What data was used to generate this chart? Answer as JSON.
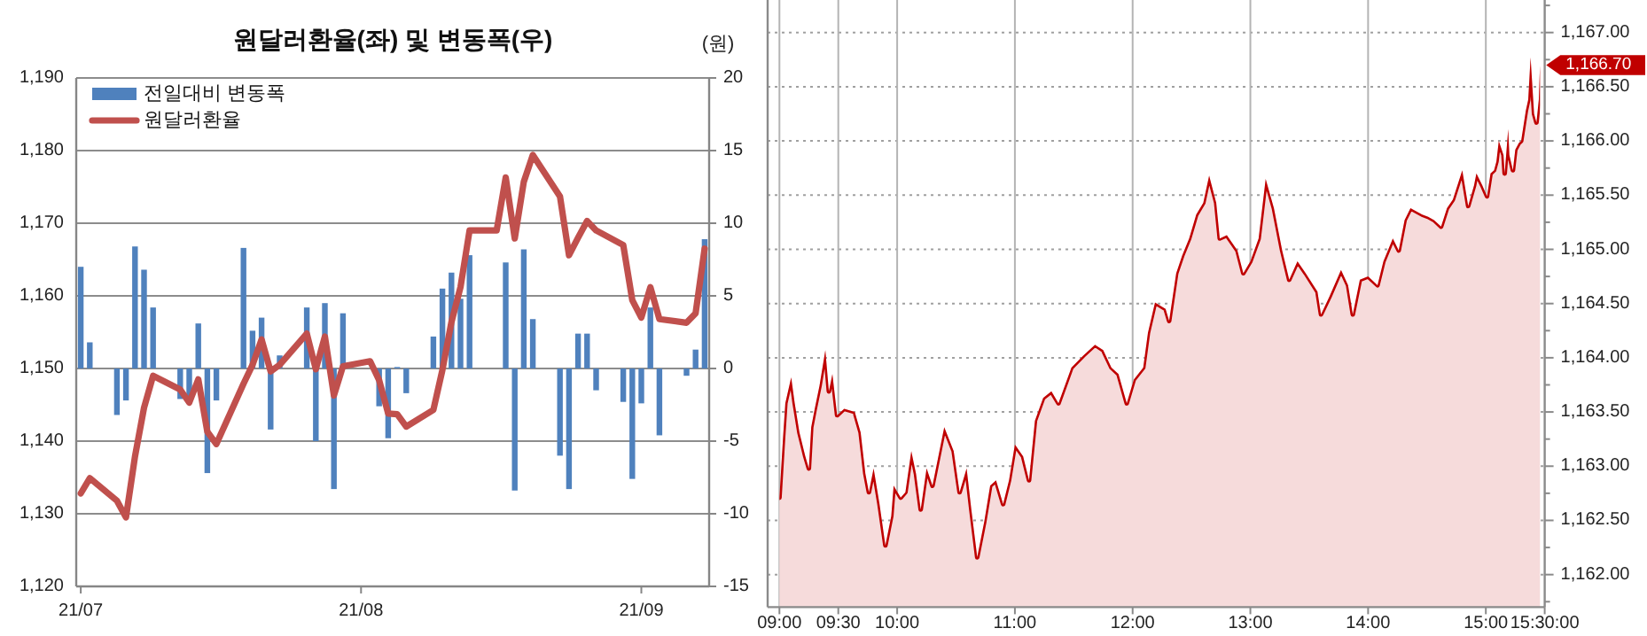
{
  "chart_data": [
    {
      "type": "bar",
      "title": "원달러환율(좌) 및 변동폭(우)",
      "y2label": "(원)",
      "legend": "top left",
      "grid": "y",
      "x": [
        "--07-01",
        "--07-02",
        "--07-05",
        "--07-06",
        "--07-07",
        "--07-08",
        "--07-09",
        "--07-12",
        "--07-13",
        "--07-14",
        "--07-15",
        "--07-16",
        "--07-19",
        "--07-20",
        "--07-21",
        "--07-22",
        "--07-23",
        "--07-26",
        "--07-27",
        "--07-28",
        "--07-29",
        "--07-30",
        "--08-02",
        "--08-03",
        "--08-04",
        "--08-05",
        "--08-06",
        "--08-09",
        "--08-10",
        "--08-11",
        "--08-12",
        "--08-13",
        "--08-16",
        "--08-17",
        "--08-18",
        "--08-19",
        "--08-20",
        "--08-23",
        "--08-24",
        "--08-25",
        "--08-26",
        "--08-27",
        "--08-30",
        "--08-31",
        "--09-01",
        "--09-02",
        "--09-03",
        "--09-06",
        "--09-07",
        "--09-08"
      ],
      "xlim": [
        "--06-30T12:00",
        "--09-08T12:00"
      ],
      "xticks": [
        {
          "value": "--07-01",
          "label": "21/07"
        },
        {
          "value": "--08-01",
          "label": "21/08"
        },
        {
          "value": "--09-01",
          "label": "21/09"
        }
      ],
      "ylim": [
        1120,
        1190
      ],
      "yticks": [
        {
          "value": 1120,
          "label": "1,120"
        },
        {
          "value": 1130,
          "label": "1,130"
        },
        {
          "value": 1140,
          "label": "1,140"
        },
        {
          "value": 1150,
          "label": "1,150"
        },
        {
          "value": 1160,
          "label": "1,160"
        },
        {
          "value": 1170,
          "label": "1,170"
        },
        {
          "value": 1180,
          "label": "1,180"
        },
        {
          "value": 1190,
          "label": "1,190"
        }
      ],
      "y2lim": [
        -15,
        20
      ],
      "y2ticks": [
        -15,
        -10,
        -5,
        0,
        5,
        10,
        15,
        20
      ],
      "series": [
        {
          "name": "전일대비 변동폭",
          "axis": "y2",
          "color": "#4f81bd",
          "values": [
            7.0,
            1.8,
            -3.2,
            -2.2,
            8.4,
            6.8,
            4.2,
            -2.1,
            -1.9,
            3.1,
            -7.2,
            -2.2,
            8.3,
            2.6,
            3.5,
            -4.2,
            0.9,
            4.2,
            -5.0,
            4.5,
            -8.3,
            3.8,
            null,
            -2.6,
            -4.8,
            0.1,
            -1.7,
            2.2,
            5.5,
            6.6,
            4.8,
            7.8,
            null,
            7.3,
            -8.4,
            8.2,
            3.4,
            -6.0,
            -8.3,
            2.4,
            2.4,
            -1.5,
            -2.3,
            -7.6,
            -2.4,
            4.2,
            -4.6,
            -0.5,
            1.3,
            8.9
          ]
        },
        {
          "name": "원달러환율",
          "type": "line",
          "color": "#c0504d",
          "values": [
            1132.8,
            1134.9,
            1131.8,
            1129.5,
            1137.9,
            1144.6,
            1149.0,
            1147.1,
            1145.3,
            1148.5,
            1141.3,
            1139.6,
            1147.9,
            1150.5,
            1154.0,
            1149.6,
            1150.5,
            1154.8,
            1149.9,
            1154.4,
            1146.3,
            1150.3,
            1151.0,
            1148.4,
            1143.8,
            1143.7,
            1142.0,
            1144.3,
            1149.8,
            1156.4,
            1161.2,
            1169.0,
            1169.0,
            1176.3,
            1167.9,
            1175.7,
            1179.4,
            1173.7,
            1165.6,
            1168.0,
            1170.3,
            1169.0,
            1167.0,
            1159.4,
            1157.0,
            1161.2,
            1156.8,
            1156.3,
            1157.6,
            1166.5
          ]
        }
      ]
    },
    {
      "type": "area",
      "color": "#c00000",
      "grid": true,
      "x": [
        9.0,
        9.03,
        9.05,
        9.1,
        9.13,
        9.17,
        9.22,
        9.25,
        9.27,
        9.3,
        9.34,
        9.39,
        9.42,
        9.45,
        9.49,
        9.55,
        9.64,
        9.69,
        9.73,
        9.76,
        9.8,
        9.85,
        9.9,
        9.95,
        9.97,
        10.03,
        10.07,
        10.12,
        10.16,
        10.2,
        10.25,
        10.3,
        10.35,
        10.4,
        10.48,
        10.53,
        10.59,
        10.63,
        10.68,
        10.74,
        10.79,
        10.84,
        10.9,
        10.95,
        11.0,
        11.07,
        11.12,
        11.17,
        11.24,
        11.31,
        11.37,
        11.48,
        11.58,
        11.68,
        11.75,
        11.82,
        11.88,
        11.95,
        12.01,
        12.09,
        12.13,
        12.19,
        12.28,
        12.31,
        12.37,
        12.42,
        12.48,
        12.54,
        12.6,
        12.65,
        12.71,
        12.74,
        12.8,
        12.89,
        12.94,
        13.0,
        13.07,
        13.13,
        13.2,
        13.27,
        13.33,
        13.4,
        13.47,
        13.57,
        13.6,
        13.67,
        13.77,
        13.83,
        13.87,
        13.93,
        14.0,
        14.08,
        14.13,
        14.21,
        14.26,
        14.31,
        14.36,
        14.46,
        14.51,
        14.56,
        14.62,
        14.67,
        14.72,
        14.8,
        14.85,
        14.9,
        14.92,
        14.97,
        15.01,
        15.04,
        15.07,
        15.09,
        15.11,
        15.15,
        15.16,
        15.19,
        15.2,
        15.23,
        15.25,
        15.28,
        15.3,
        15.34,
        15.36,
        15.38,
        15.41,
        15.43,
        15.45,
        15.46
      ],
      "values": [
        1162.71,
        1163.25,
        1163.58,
        1163.82,
        1163.58,
        1163.31,
        1163.09,
        1162.98,
        1163.36,
        1163.53,
        1163.74,
        1164.07,
        1163.69,
        1163.85,
        1163.47,
        1163.53,
        1163.5,
        1163.31,
        1162.93,
        1162.76,
        1162.98,
        1162.65,
        1162.27,
        1162.54,
        1162.82,
        1162.71,
        1162.76,
        1163.14,
        1162.93,
        1162.6,
        1162.98,
        1162.82,
        1163.09,
        1163.36,
        1163.14,
        1162.76,
        1162.98,
        1162.6,
        1162.16,
        1162.49,
        1162.82,
        1162.87,
        1162.65,
        1162.87,
        1163.2,
        1163.09,
        1162.87,
        1163.42,
        1163.63,
        1163.69,
        1163.58,
        1163.91,
        1164.02,
        1164.12,
        1164.07,
        1163.91,
        1163.85,
        1163.58,
        1163.8,
        1163.91,
        1164.23,
        1164.51,
        1164.45,
        1164.34,
        1164.78,
        1164.94,
        1165.1,
        1165.32,
        1165.43,
        1165.68,
        1165.43,
        1165.1,
        1165.13,
        1164.99,
        1164.78,
        1164.89,
        1165.1,
        1165.65,
        1165.38,
        1164.99,
        1164.72,
        1164.89,
        1164.78,
        1164.61,
        1164.4,
        1164.56,
        1164.81,
        1164.67,
        1164.4,
        1164.72,
        1164.75,
        1164.67,
        1164.89,
        1165.1,
        1164.99,
        1165.27,
        1165.38,
        1165.32,
        1165.3,
        1165.27,
        1165.21,
        1165.38,
        1165.46,
        1165.73,
        1165.4,
        1165.59,
        1165.7,
        1165.59,
        1165.49,
        1165.7,
        1165.73,
        1165.81,
        1166.0,
        1165.87,
        1165.7,
        1166.11,
        1165.87,
        1165.73,
        1165.92,
        1165.98,
        1166.0,
        1166.28,
        1166.38,
        1166.77,
        1166.25,
        1166.17,
        1166.38,
        1166.7
      ],
      "xlim": [
        8.9,
        15.5
      ],
      "xticks": [
        {
          "value": 9,
          "label": "09:00"
        },
        {
          "value": 9.5,
          "label": "09:30"
        },
        {
          "value": 10,
          "label": "10:00"
        },
        {
          "value": 11,
          "label": "11:00"
        },
        {
          "value": 12,
          "label": "12:00"
        },
        {
          "value": 13,
          "label": "13:00"
        },
        {
          "value": 14,
          "label": "14:00"
        },
        {
          "value": 15,
          "label": "15:00"
        },
        {
          "value": 15.5,
          "label": "15:30:00"
        }
      ],
      "ylim": [
        1161.7,
        1167.3
      ],
      "yticks": [
        {
          "value": 1161.75,
          "label": null
        },
        {
          "value": 1162,
          "label": "1,162.00"
        },
        {
          "value": 1162.25,
          "label": null
        },
        {
          "value": 1162.5,
          "label": "1,162.50"
        },
        {
          "value": 1162.75,
          "label": null
        },
        {
          "value": 1163,
          "label": "1,163.00"
        },
        {
          "value": 1163.25,
          "label": null
        },
        {
          "value": 1163.5,
          "label": "1,163.50"
        },
        {
          "value": 1163.75,
          "label": null
        },
        {
          "value": 1164,
          "label": "1,164.00"
        },
        {
          "value": 1164.25,
          "label": null
        },
        {
          "value": 1164.5,
          "label": "1,164.50"
        },
        {
          "value": 1164.75,
          "label": null
        },
        {
          "value": 1165,
          "label": "1,165.00"
        },
        {
          "value": 1165.25,
          "label": null
        },
        {
          "value": 1165.5,
          "label": "1,165.50"
        },
        {
          "value": 1165.75,
          "label": null
        },
        {
          "value": 1166,
          "label": "1,166.00"
        },
        {
          "value": 1166.25,
          "label": null
        },
        {
          "value": 1166.5,
          "label": "1,166.50"
        },
        {
          "value": 1166.75,
          "label": null
        },
        {
          "value": 1167,
          "label": "1,167.00"
        },
        {
          "value": 1167.25,
          "label": null
        }
      ],
      "annotations": [
        {
          "text": "1,166.70",
          "x": 15.46,
          "y": 1166.7
        }
      ]
    }
  ]
}
